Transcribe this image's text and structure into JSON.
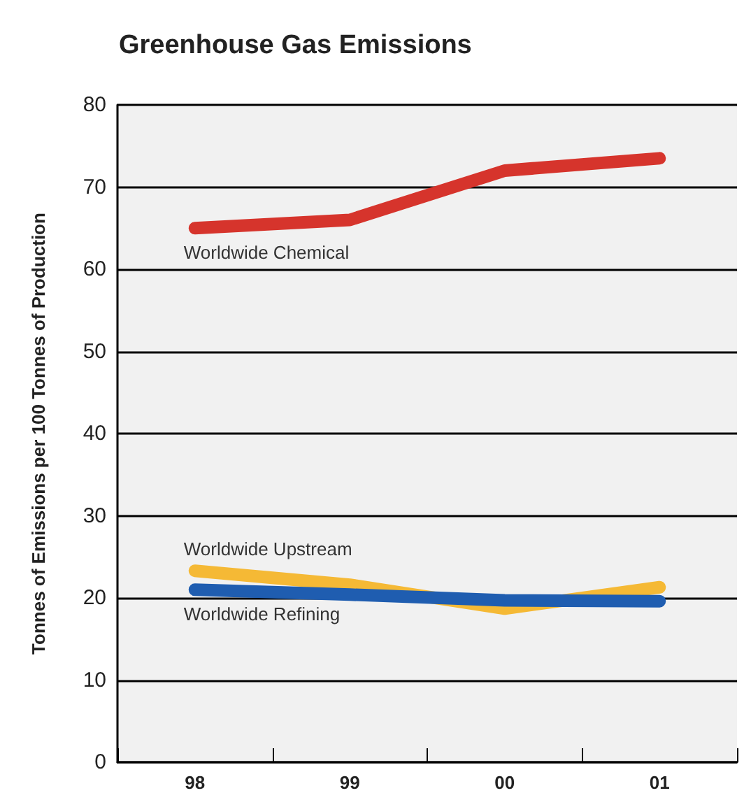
{
  "chart_data": {
    "type": "line",
    "title": "Greenhouse Gas Emissions",
    "ylabel": "Tonnes of Emissions per 100 Tonnes of Production",
    "categories": [
      "98",
      "99",
      "00",
      "01"
    ],
    "series": [
      {
        "name": "Worldwide Chemical",
        "color": "#d6342c",
        "values": [
          65,
          66,
          72,
          73.5
        ]
      },
      {
        "name": "Worldwide Upstream",
        "color": "#f5b935",
        "values": [
          23.3,
          21.6,
          18.7,
          21.3
        ]
      },
      {
        "name": "Worldwide Refining",
        "color": "#1f5db0",
        "values": [
          21,
          20.4,
          19.7,
          19.6
        ]
      }
    ],
    "ylim": [
      0,
      80
    ],
    "yticks": [
      0,
      10,
      20,
      30,
      40,
      50,
      60,
      70,
      80
    ],
    "grid": "y",
    "legend": false,
    "marker": "none",
    "line_style": "solid"
  }
}
